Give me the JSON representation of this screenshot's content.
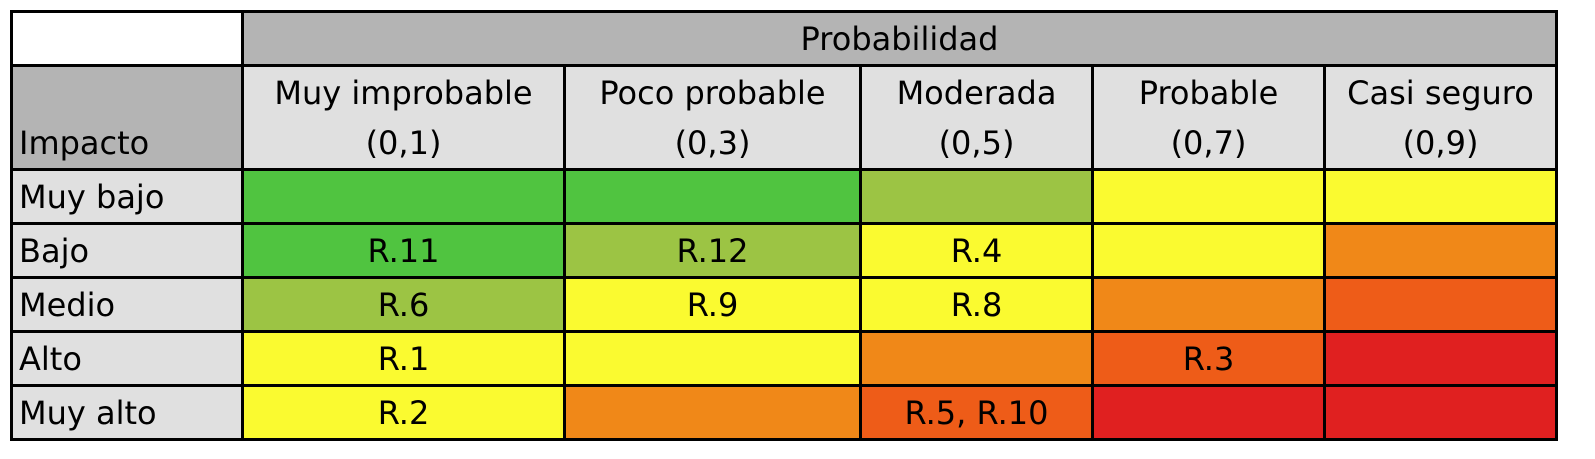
{
  "matrix": {
    "probability_header": "Probabilidad",
    "impact_header": "Impacto",
    "columns": [
      {
        "name": "Muy improbable",
        "value": "(0,1)"
      },
      {
        "name": "Poco probable",
        "value": "(0,3)"
      },
      {
        "name": "Moderada",
        "value": "(0,5)"
      },
      {
        "name": "Probable",
        "value": "(0,7)"
      },
      {
        "name": "Casi seguro",
        "value": "(0,9)"
      }
    ],
    "rows": [
      {
        "label": "Muy bajo",
        "cells": [
          "",
          "",
          "",
          "",
          ""
        ]
      },
      {
        "label": "Bajo",
        "cells": [
          "R.11",
          "R.12",
          "R.4",
          "",
          ""
        ]
      },
      {
        "label": "Medio",
        "cells": [
          "R.6",
          "R.9",
          "R.8",
          "",
          ""
        ]
      },
      {
        "label": "Alto",
        "cells": [
          "R.1",
          "",
          "",
          "R.3",
          ""
        ]
      },
      {
        "label": "Muy alto",
        "cells": [
          "R.2",
          "",
          "R.5, R.10",
          "",
          ""
        ]
      }
    ],
    "colors": {
      "header_gray": "#b4b4b4",
      "label_gray": "#e0e0e0",
      "green": "#50c440",
      "olive": "#9cc444",
      "yellow": "#fafa30",
      "orange": "#f08818",
      "dark_orange": "#ee5c18",
      "red": "#e02020"
    },
    "cell_colors": [
      [
        "green",
        "green",
        "olive",
        "yellow",
        "yellow"
      ],
      [
        "green",
        "olive",
        "yellow",
        "yellow",
        "orange"
      ],
      [
        "olive",
        "yellow",
        "yellow",
        "orange",
        "dark_orange"
      ],
      [
        "yellow",
        "yellow",
        "orange",
        "dark_orange",
        "red"
      ],
      [
        "yellow",
        "orange",
        "dark_orange",
        "red",
        "red"
      ]
    ]
  }
}
